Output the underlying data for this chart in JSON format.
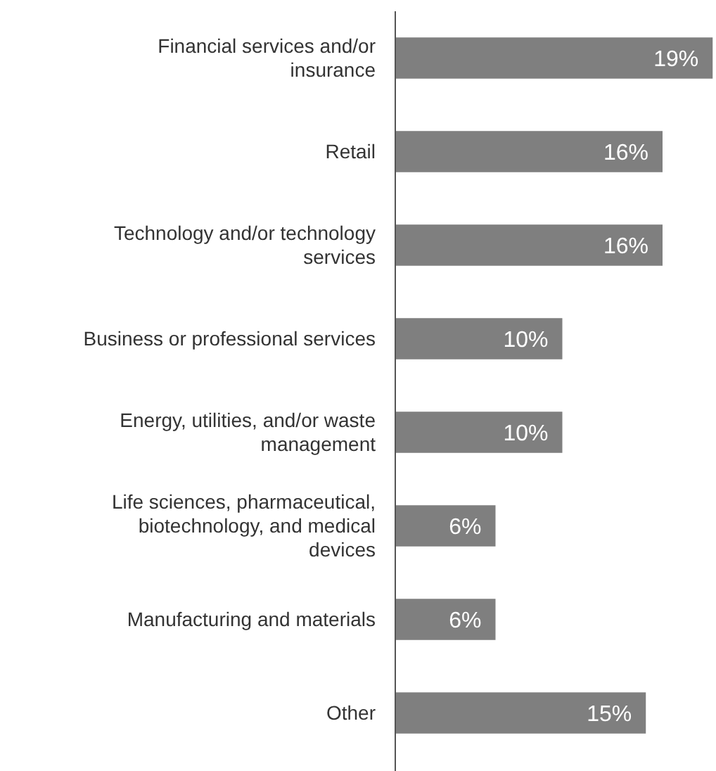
{
  "chart_data": {
    "type": "bar",
    "orientation": "horizontal",
    "categories": [
      "Financial services and/or\ninsurance",
      "Retail",
      "Technology and/or technology\nservices",
      "Business or professional services",
      "Energy, utilities, and/or waste\nmanagement",
      "Life sciences, pharmaceutical,\nbiotechnology, and medical\ndevices",
      "Manufacturing and materials",
      "Other"
    ],
    "values": [
      19,
      16,
      16,
      10,
      10,
      6,
      6,
      15
    ],
    "value_labels": [
      "19%",
      "16%",
      "16%",
      "10%",
      "10%",
      "6%",
      "6%",
      "15%"
    ],
    "color": "#7f7f7f",
    "xlim": [
      0,
      19.2
    ],
    "tick_labels": "y"
  }
}
